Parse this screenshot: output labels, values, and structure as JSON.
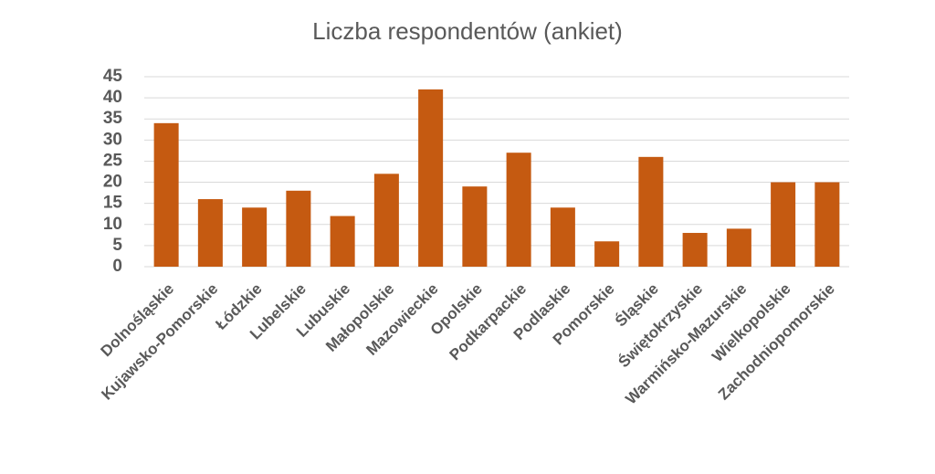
{
  "chart_data": {
    "type": "bar",
    "title": "Liczba respondentów (ankiet)",
    "categories": [
      "Dolnośląskie",
      "Kujawsko-Pomorskie",
      "Łódzkie",
      "Lubelskie",
      "Lubuskie",
      "Małopolskie",
      "Mazowieckie",
      "Opolskie",
      "Podkarpackie",
      "Podlaskie",
      "Pomorskie",
      "Śląskie",
      "Świętokrzyskie",
      "Warmińsko-Mazurskie",
      "Wielkopolskie",
      "Zachodniopomorskie"
    ],
    "values": [
      34,
      16,
      14,
      18,
      12,
      22,
      42,
      19,
      27,
      14,
      6,
      26,
      8,
      9,
      20,
      20
    ],
    "color": "#c55a11",
    "ylim": [
      0,
      45
    ],
    "yticks": [
      0,
      5,
      10,
      15,
      20,
      25,
      30,
      35,
      40,
      45
    ],
    "grid": true
  }
}
